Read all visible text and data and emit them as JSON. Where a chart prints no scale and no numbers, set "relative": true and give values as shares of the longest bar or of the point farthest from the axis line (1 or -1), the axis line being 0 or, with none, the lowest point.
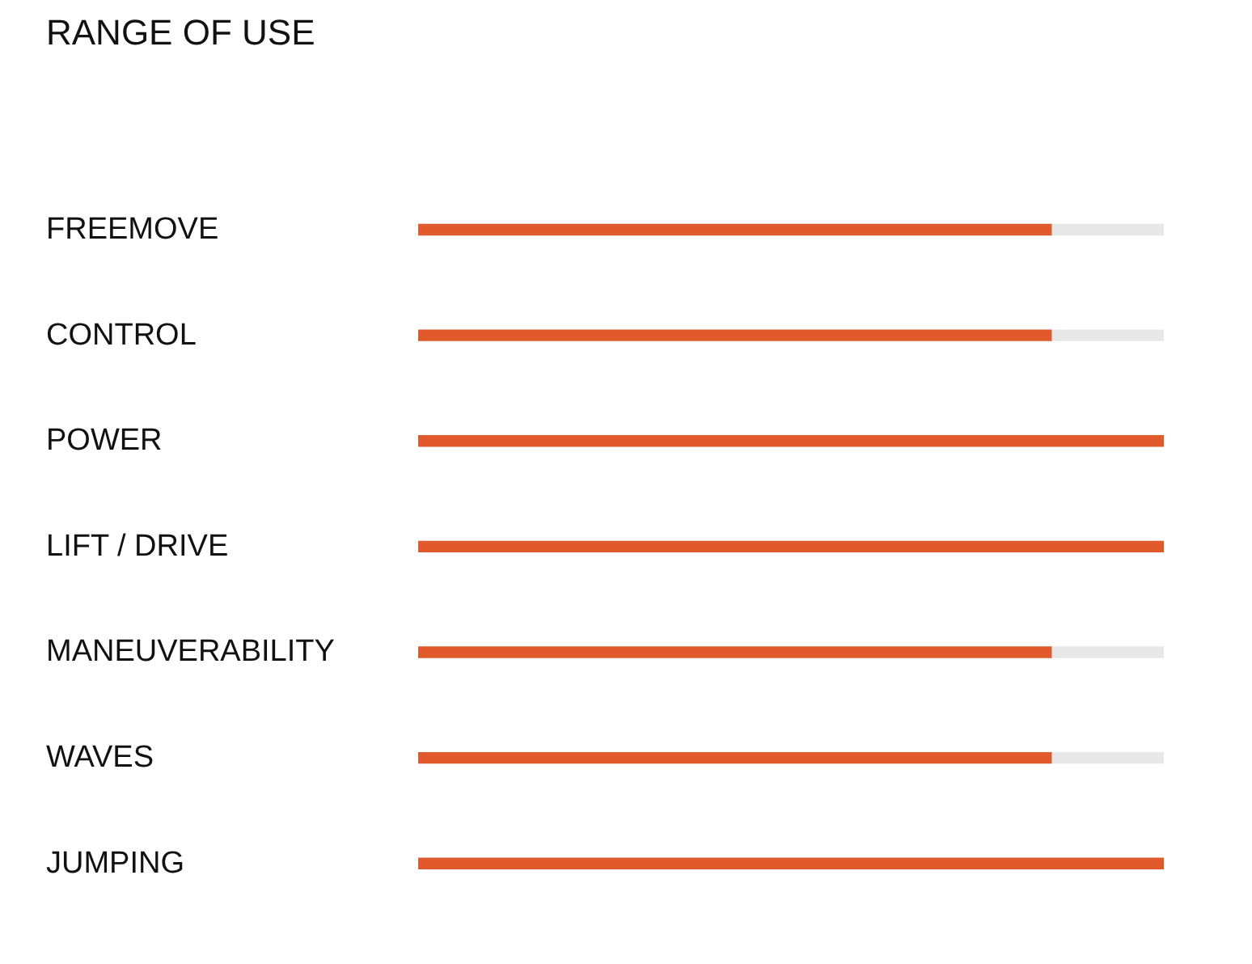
{
  "chart_data": {
    "type": "bar",
    "title": "RANGE OF USE",
    "orientation": "horizontal",
    "relative": true,
    "stacked": true,
    "grid": false,
    "categories": [
      "FREEMOVE",
      "CONTROL",
      "POWER",
      "LIFT / DRIVE",
      "MANEUVERABILITY",
      "WAVES",
      "JUMPING"
    ],
    "series": [
      {
        "color": "#e05a2b",
        "values": [
          0.85,
          0.85,
          1,
          1,
          0.85,
          0.85,
          1
        ]
      },
      {
        "color": "#e8e8e8",
        "values": [
          0.15,
          0.15,
          0,
          0,
          0.15,
          0.15,
          0
        ]
      }
    ]
  }
}
